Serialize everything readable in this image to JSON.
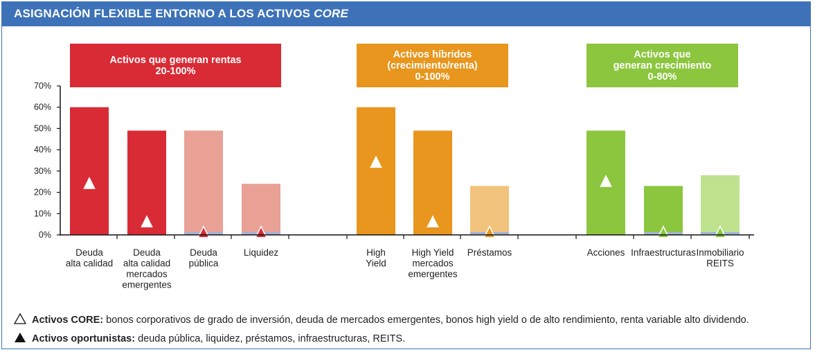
{
  "header": {
    "title_main": "ASIGNACIÓN FLEXIBLE ENTORNO A LOS ACTIVOS ",
    "title_italic": "CORE"
  },
  "colors": {
    "header_bg": "#3d72b8",
    "red": "#d92b35",
    "red_light": "#e9a095",
    "orange": "#e8961e",
    "orange_light": "#f2c37c",
    "green": "#8cc63f",
    "green_light": "#bfe28f"
  },
  "groups": [
    {
      "id": "rentas",
      "lines": [
        "Activos que generan rentas",
        "20-100%"
      ],
      "color": "#d92b35"
    },
    {
      "id": "hibridos",
      "lines": [
        "Activos híbridos",
        "(crecimiento/renta)",
        "0-100%"
      ],
      "color": "#e8961e"
    },
    {
      "id": "crecimiento",
      "lines": [
        "Activos que",
        "generan crecimiento",
        "0-80%"
      ],
      "color": "#8cc63f"
    }
  ],
  "chart_data": {
    "type": "bar",
    "ylim": [
      0,
      70
    ],
    "yticks": [
      0,
      10,
      20,
      30,
      40,
      50,
      60,
      70
    ],
    "ytick_labels": [
      "0%",
      "10%",
      "20%",
      "30%",
      "40%",
      "50%",
      "60%",
      "70%"
    ],
    "categories": [
      {
        "label": [
          "Deuda",
          "alta calidad"
        ],
        "value": 60,
        "marker": "open",
        "marker_value": 24,
        "color": "#d92b35",
        "group": "rentas"
      },
      {
        "label": [
          "Deuda",
          "alta calidad",
          "mercados",
          "emergentes"
        ],
        "value": 49,
        "marker": "open",
        "marker_value": 6,
        "color": "#d92b35",
        "group": "rentas"
      },
      {
        "label": [
          "Deuda",
          "pública"
        ],
        "value": 49,
        "marker": "filled",
        "marker_value": 1,
        "color": "#e9a095",
        "group": "rentas"
      },
      {
        "label": [
          "Liquidez"
        ],
        "value": 24,
        "marker": "filled",
        "marker_value": 1,
        "color": "#e9a095",
        "group": "rentas"
      },
      {
        "label": [
          "High",
          "Yield"
        ],
        "value": 60,
        "marker": "open",
        "marker_value": 34,
        "color": "#e8961e",
        "group": "hibridos"
      },
      {
        "label": [
          "High Yield",
          "mercados",
          "emergentes"
        ],
        "value": 49,
        "marker": "open",
        "marker_value": 6,
        "color": "#e8961e",
        "group": "hibridos"
      },
      {
        "label": [
          "Préstamos"
        ],
        "value": 23,
        "marker": "filled",
        "marker_value": 1,
        "color": "#f2c37c",
        "group": "hibridos"
      },
      {
        "label": [
          "Acciones"
        ],
        "value": 49,
        "marker": "open",
        "marker_value": 25,
        "color": "#8cc63f",
        "group": "crecimiento"
      },
      {
        "label": [
          "Infraestructuras"
        ],
        "value": 23,
        "marker": "filled",
        "marker_value": 1,
        "color": "#8cc63f",
        "group": "crecimiento"
      },
      {
        "label": [
          "Inmobiliario",
          "REITS"
        ],
        "value": 28,
        "marker": "filled",
        "marker_value": 1,
        "color": "#bfe28f",
        "group": "crecimiento"
      }
    ]
  },
  "legend": {
    "core_label": "Activos CORE:",
    "core_text": " bonos corporativos de grado de inversión, deuda de mercados emergentes, bonos high yield o de alto rendimiento, renta variable alto dividendo.",
    "oport_label": "Activos oportunistas:",
    "oport_text": " deuda pública, liquidez, préstamos, infraestructuras, REITS."
  }
}
